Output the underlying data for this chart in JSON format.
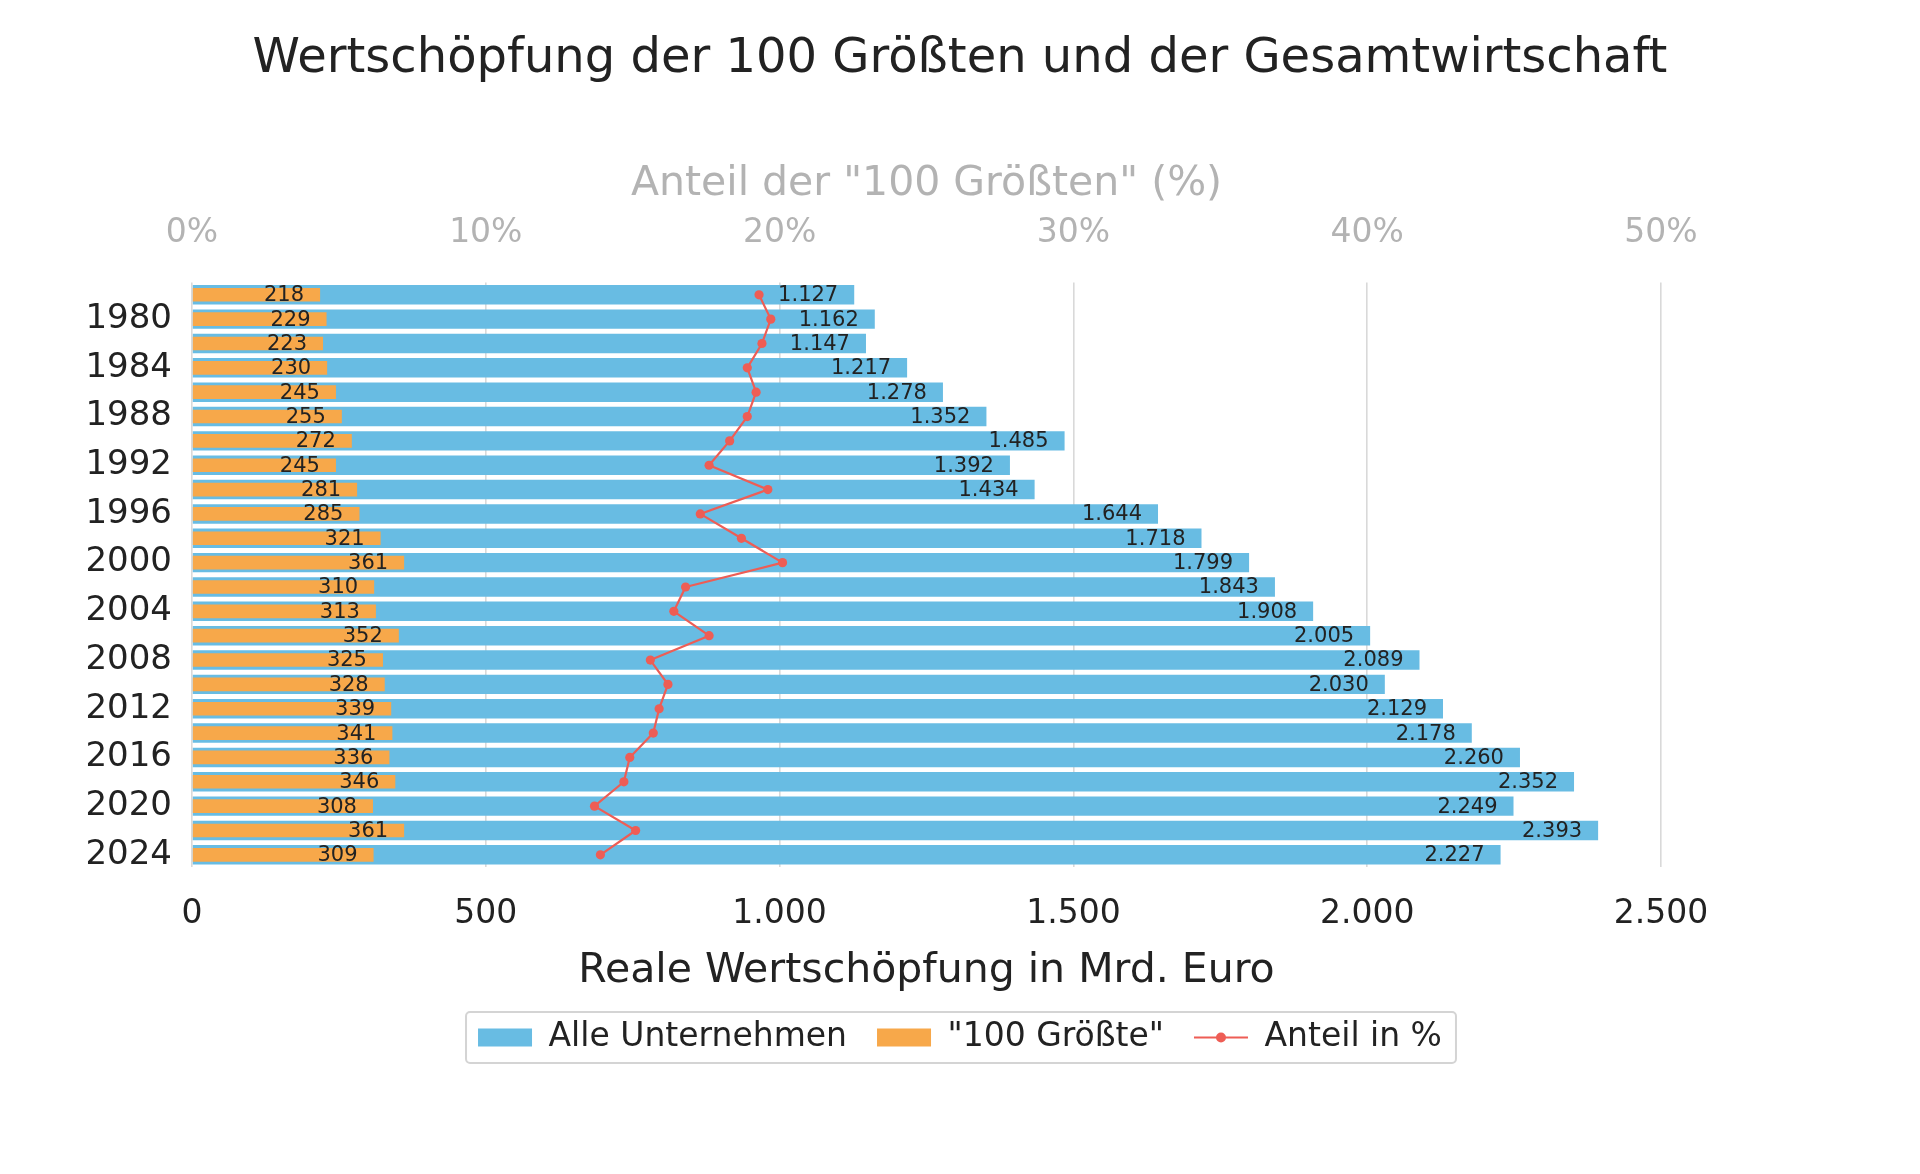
{
  "chart_data": {
    "type": "bar",
    "orientation": "horizontal",
    "title": "Wertschöpfung der 100 Größten und der Gesamtwirtschaft",
    "xlabel": "Reale Wertschöpfung in Mrd. Euro",
    "x2label": "Anteil der \"100 Größten\" (%)",
    "categories": [
      null,
      "1980",
      null,
      "1984",
      null,
      "1988",
      null,
      "1992",
      null,
      "1996",
      null,
      "2000",
      null,
      "2004",
      null,
      "2008",
      null,
      "2012",
      null,
      "2016",
      null,
      "2020",
      null,
      "2024"
    ],
    "series": [
      {
        "name": "Alle Unternehmen",
        "color": "#68bce3",
        "values": [
          1127,
          1162,
          1147,
          1217,
          1278,
          1352,
          1485,
          1392,
          1434,
          1644,
          1718,
          1799,
          1843,
          1908,
          2005,
          2089,
          2030,
          2129,
          2178,
          2260,
          2352,
          2249,
          2393,
          2227
        ],
        "value_labels": [
          "1.127",
          "1.162",
          "1.147",
          "1.217",
          "1.278",
          "1.352",
          "1.485",
          "1.392",
          "1.434",
          "1.644",
          "1.718",
          "1.799",
          "1.843",
          "1.908",
          "2.005",
          "2.089",
          "2.030",
          "2.129",
          "2.178",
          "2.260",
          "2.352",
          "2.249",
          "2.393",
          "2.227"
        ]
      },
      {
        "name": "\"100 Größte\"",
        "color": "#f7a84a",
        "values": [
          218,
          229,
          223,
          230,
          245,
          255,
          272,
          245,
          281,
          285,
          321,
          361,
          310,
          313,
          352,
          325,
          328,
          339,
          341,
          336,
          346,
          308,
          361,
          309
        ],
        "value_labels": [
          "218",
          "229",
          "223",
          "230",
          "245",
          "255",
          "272",
          "245",
          "281",
          "285",
          "321",
          "361",
          "310",
          "313",
          "352",
          "325",
          "328",
          "339",
          "341",
          "336",
          "346",
          "308",
          "361",
          "309"
        ]
      },
      {
        "name": "Anteil in %",
        "type": "line",
        "axis": "x2",
        "color": "#ee5d55",
        "values": [
          19.3,
          19.7,
          19.4,
          18.9,
          19.2,
          18.9,
          18.3,
          17.6,
          19.6,
          17.3,
          18.7,
          20.1,
          16.8,
          16.4,
          17.6,
          15.6,
          16.2,
          15.9,
          15.7,
          14.9,
          14.7,
          13.7,
          15.1,
          13.9
        ]
      }
    ],
    "xlim": [
      0,
      2500
    ],
    "xticks": [
      0,
      500,
      {
        "value": 1000,
        "label": "1.000"
      },
      {
        "value": 1500,
        "label": "1.500"
      },
      {
        "value": 2000,
        "label": "2.000"
      },
      {
        "value": 2500,
        "label": "2.500"
      }
    ],
    "x2lim": [
      0,
      50
    ],
    "x2ticks": [
      {
        "value": 0,
        "label": "0%"
      },
      {
        "value": 10,
        "label": "10%"
      },
      {
        "value": 20,
        "label": "20%"
      },
      {
        "value": 30,
        "label": "30%"
      },
      {
        "value": 40,
        "label": "40%"
      },
      {
        "value": 50,
        "label": "50%"
      }
    ],
    "grid": "x",
    "legend": "bottom",
    "marker": "circle",
    "line_style": "solid"
  }
}
